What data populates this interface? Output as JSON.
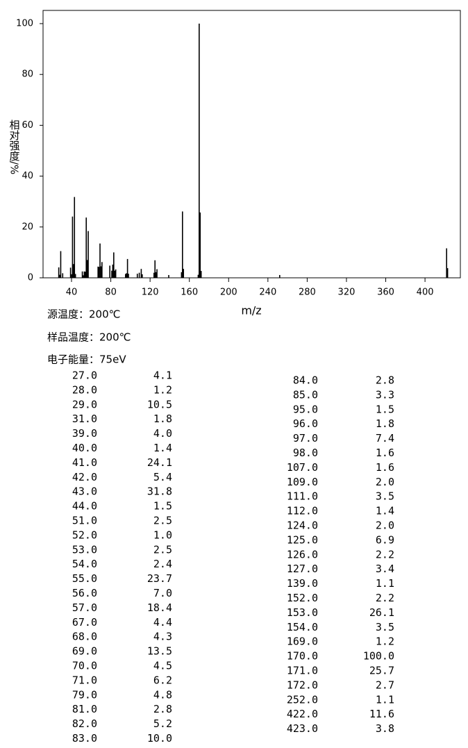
{
  "chart_data": {
    "type": "stem",
    "ylabel": "相对强度/%",
    "xlabel": "m/z",
    "color": "#000000",
    "xlim": [
      11,
      436
    ],
    "ylim": [
      0,
      100
    ],
    "xticks": [
      40,
      80,
      120,
      160,
      200,
      240,
      280,
      320,
      360,
      400
    ],
    "yticks": [
      0,
      20,
      40,
      60,
      80,
      100
    ],
    "x": [
      27,
      28,
      29,
      31,
      39,
      40,
      41,
      42,
      43,
      44,
      51,
      52,
      53,
      54,
      55,
      56,
      57,
      67,
      68,
      69,
      70,
      71,
      79,
      81,
      82,
      83,
      84,
      85,
      95,
      96,
      97,
      98,
      107,
      109,
      111,
      112,
      124,
      125,
      126,
      127,
      139,
      152,
      153,
      154,
      169,
      170,
      171,
      172,
      252,
      422,
      423
    ],
    "values": [
      4.1,
      1.2,
      10.5,
      1.8,
      4.0,
      1.4,
      24.1,
      5.4,
      31.8,
      1.5,
      2.5,
      1.0,
      2.5,
      2.4,
      23.7,
      7.0,
      18.4,
      4.4,
      4.3,
      13.5,
      4.5,
      6.2,
      4.8,
      2.8,
      5.2,
      10.0,
      2.8,
      3.3,
      1.5,
      1.8,
      7.4,
      1.6,
      1.6,
      2.0,
      3.5,
      1.4,
      2.0,
      6.9,
      2.2,
      3.4,
      1.1,
      2.2,
      26.1,
      3.5,
      1.2,
      100.0,
      25.7,
      2.7,
      1.1,
      11.6,
      3.8
    ]
  },
  "info": [
    "源温度：200℃",
    "样品温度：200℃",
    "电子能量：75eV"
  ],
  "table": {
    "columns": [
      [
        [
          "27.0",
          "4.1"
        ],
        [
          "28.0",
          "1.2"
        ],
        [
          "29.0",
          "10.5"
        ],
        [
          "31.0",
          "1.8"
        ],
        [
          "39.0",
          "4.0"
        ],
        [
          "40.0",
          "1.4"
        ],
        [
          "41.0",
          "24.1"
        ],
        [
          "42.0",
          "5.4"
        ],
        [
          "43.0",
          "31.8"
        ],
        [
          "44.0",
          "1.5"
        ],
        [
          "51.0",
          "2.5"
        ],
        [
          "52.0",
          "1.0"
        ],
        [
          "53.0",
          "2.5"
        ],
        [
          "54.0",
          "2.4"
        ],
        [
          "55.0",
          "23.7"
        ],
        [
          "56.0",
          "7.0"
        ],
        [
          "57.0",
          "18.4"
        ],
        [
          "67.0",
          "4.4"
        ],
        [
          "68.0",
          "4.3"
        ],
        [
          "69.0",
          "13.5"
        ],
        [
          "70.0",
          "4.5"
        ],
        [
          "71.0",
          "6.2"
        ],
        [
          "79.0",
          "4.8"
        ],
        [
          "81.0",
          "2.8"
        ],
        [
          "82.0",
          "5.2"
        ],
        [
          "83.0",
          "10.0"
        ]
      ],
      [
        [
          "84.0",
          "2.8"
        ],
        [
          "85.0",
          "3.3"
        ],
        [
          "95.0",
          "1.5"
        ],
        [
          "96.0",
          "1.8"
        ],
        [
          "97.0",
          "7.4"
        ],
        [
          "98.0",
          "1.6"
        ],
        [
          "107.0",
          "1.6"
        ],
        [
          "109.0",
          "2.0"
        ],
        [
          "111.0",
          "3.5"
        ],
        [
          "112.0",
          "1.4"
        ],
        [
          "124.0",
          "2.0"
        ],
        [
          "125.0",
          "6.9"
        ],
        [
          "126.0",
          "2.2"
        ],
        [
          "127.0",
          "3.4"
        ],
        [
          "139.0",
          "1.1"
        ],
        [
          "152.0",
          "2.2"
        ],
        [
          "153.0",
          "26.1"
        ],
        [
          "154.0",
          "3.5"
        ],
        [
          "169.0",
          "1.2"
        ],
        [
          "170.0",
          "100.0"
        ],
        [
          "171.0",
          "25.7"
        ],
        [
          "172.0",
          "2.7"
        ],
        [
          "252.0",
          "1.1"
        ],
        [
          "422.0",
          "11.6"
        ],
        [
          "423.0",
          "3.8"
        ]
      ]
    ]
  }
}
